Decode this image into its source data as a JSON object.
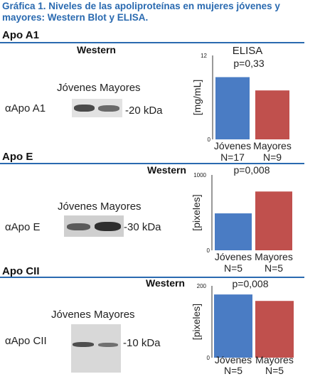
{
  "figure_title": "Gráfica 1. Niveles de las apoliproteínas en mujeres jóvenes y mayores: Western Blot  y ELISA.",
  "panels": [
    {
      "heading": "Apo A1",
      "western_label": "Western",
      "lane_labels": "Jóvenes Mayores",
      "antibody": "αApo A1",
      "kda": "-20 kDa"
    },
    {
      "heading": "Apo E",
      "western_label": "Western",
      "lane_labels": "Jóvenes Mayores",
      "antibody": "αApo E",
      "kda": "-30 kDa"
    },
    {
      "heading": "Apo CII",
      "western_label": "Western",
      "lane_labels": "Jóvenes Mayores",
      "antibody": "αApo CII",
      "kda": "-10 kDa"
    }
  ],
  "colors": {
    "title": "#2a6ab0",
    "rule": "#2a6ab0",
    "blue_bar": "#4a7cc4",
    "red_bar": "#c0504d"
  },
  "chart_data": [
    {
      "type": "bar",
      "title": "ELISA",
      "pvalue": "p=0,33",
      "ylabel": "[mg/mL]",
      "ylim": [
        0,
        12
      ],
      "ytick_labels": [
        "12",
        "0"
      ],
      "categories": [
        "Jóvenes",
        "Mayores"
      ],
      "n_labels": [
        "N=17",
        "N=9"
      ],
      "values": [
        8.9,
        7.0
      ],
      "colors": [
        "#4a7cc4",
        "#c0504d"
      ]
    },
    {
      "type": "bar",
      "title": "",
      "pvalue": "p=0,008",
      "ylabel": "[pixeles]",
      "ylim": [
        0,
        1000
      ],
      "ytick_labels": [
        "1000",
        "0"
      ],
      "categories": [
        "Jóvenes",
        "Mayores"
      ],
      "n_labels": [
        "N=5",
        "N=5"
      ],
      "values": [
        490,
        780
      ],
      "colors": [
        "#4a7cc4",
        "#c0504d"
      ]
    },
    {
      "type": "bar",
      "title": "",
      "pvalue": "p=0,008",
      "ylabel": "[pixeles]",
      "ylim": [
        0,
        200
      ],
      "ytick_labels": [
        "200",
        "0"
      ],
      "categories": [
        "Jóvenes",
        "Mayores"
      ],
      "n_labels": [
        "N=5",
        "N=5"
      ],
      "values": [
        176,
        158
      ],
      "colors": [
        "#4a7cc4",
        "#c0504d"
      ]
    }
  ]
}
